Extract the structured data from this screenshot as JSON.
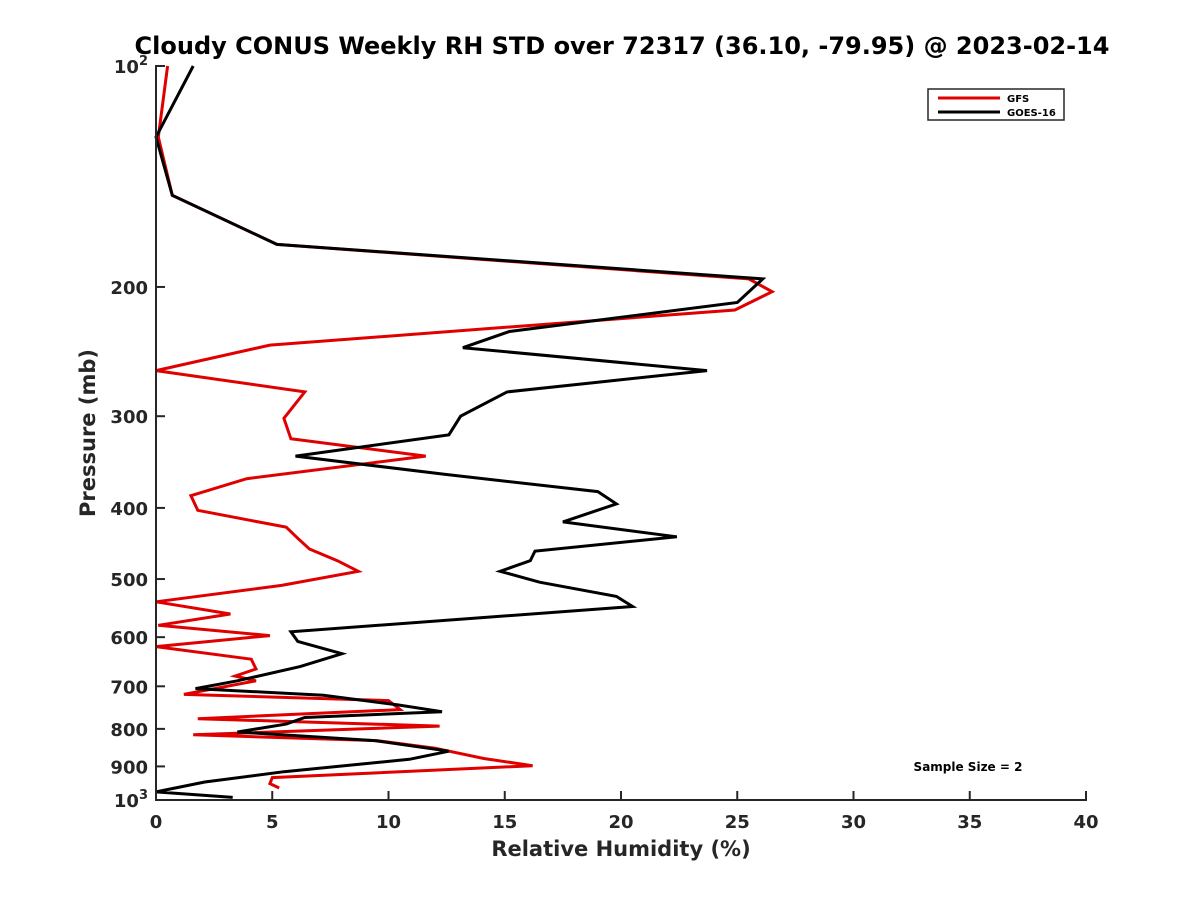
{
  "chart_data": {
    "type": "line",
    "title": "Cloudy CONUS Weekly RH STD over 72317 (36.10, -79.95) @ 2023-02-14",
    "xlabel": "Relative Humidity (%)",
    "ylabel": "Pressure (mb)",
    "xlim": [
      0,
      40
    ],
    "ylim": [
      100,
      1000
    ],
    "y_scale": "log",
    "y_reversed": true,
    "grid": false,
    "legend_position": "top-right",
    "x_ticks": [
      0,
      5,
      10,
      15,
      20,
      25,
      30,
      35,
      40
    ],
    "y_ticks": [
      {
        "value": 100,
        "base": "10",
        "exp": "2"
      },
      {
        "value": 200,
        "label": "200"
      },
      {
        "value": 300,
        "label": "300"
      },
      {
        "value": 400,
        "label": "400"
      },
      {
        "value": 500,
        "label": "500"
      },
      {
        "value": 600,
        "label": "600"
      },
      {
        "value": 700,
        "label": "700"
      },
      {
        "value": 800,
        "label": "800"
      },
      {
        "value": 900,
        "label": "900"
      },
      {
        "value": 1000,
        "base": "10",
        "exp": "3"
      }
    ],
    "annotation": "Sample Size = 2",
    "series": [
      {
        "name": "GFS",
        "color": "#e00000",
        "points": [
          [
            0.5,
            100
          ],
          [
            0.1,
            125
          ],
          [
            0.7,
            150
          ],
          [
            5.2,
            175
          ],
          [
            25.5,
            195
          ],
          [
            26.5,
            203
          ],
          [
            24.9,
            215
          ],
          [
            4.9,
            240
          ],
          [
            0.0,
            260
          ],
          [
            6.4,
            278
          ],
          [
            5.5,
            302
          ],
          [
            5.8,
            322
          ],
          [
            11.6,
            340
          ],
          [
            3.9,
            365
          ],
          [
            1.5,
            385
          ],
          [
            1.8,
            403
          ],
          [
            5.6,
            425
          ],
          [
            6.1,
            440
          ],
          [
            6.6,
            455
          ],
          [
            7.8,
            472
          ],
          [
            8.7,
            488
          ],
          [
            5.4,
            510
          ],
          [
            0.0,
            537
          ],
          [
            3.2,
            558
          ],
          [
            0.1,
            578
          ],
          [
            4.9,
            597
          ],
          [
            0.0,
            618
          ],
          [
            4.1,
            643
          ],
          [
            4.3,
            663
          ],
          [
            3.4,
            678
          ],
          [
            4.3,
            688
          ],
          [
            1.2,
            718
          ],
          [
            10.0,
            732
          ],
          [
            10.5,
            753
          ],
          [
            1.8,
            775
          ],
          [
            12.2,
            793
          ],
          [
            1.6,
            815
          ],
          [
            9.5,
            830
          ],
          [
            12.0,
            850
          ],
          [
            14.1,
            878
          ],
          [
            16.2,
            898
          ],
          [
            5.0,
            932
          ],
          [
            4.9,
            950
          ],
          [
            5.3,
            963
          ]
        ]
      },
      {
        "name": "GOES-16",
        "color": "#000000",
        "points": [
          [
            1.6,
            100
          ],
          [
            0.0,
            125
          ],
          [
            0.7,
            150
          ],
          [
            5.2,
            175
          ],
          [
            26.1,
            195
          ],
          [
            25.0,
            210
          ],
          [
            15.2,
            230
          ],
          [
            13.2,
            242
          ],
          [
            23.7,
            260
          ],
          [
            15.1,
            278
          ],
          [
            13.1,
            300
          ],
          [
            12.6,
            318
          ],
          [
            6.0,
            340
          ],
          [
            12.4,
            360
          ],
          [
            19.0,
            380
          ],
          [
            19.8,
            395
          ],
          [
            17.5,
            418
          ],
          [
            22.4,
            438
          ],
          [
            16.3,
            458
          ],
          [
            16.1,
            472
          ],
          [
            14.8,
            488
          ],
          [
            16.5,
            505
          ],
          [
            19.8,
            528
          ],
          [
            20.5,
            545
          ],
          [
            5.8,
            590
          ],
          [
            6.1,
            608
          ],
          [
            8.0,
            632
          ],
          [
            6.2,
            658
          ],
          [
            3.5,
            688
          ],
          [
            1.7,
            705
          ],
          [
            7.2,
            720
          ],
          [
            10.4,
            742
          ],
          [
            12.3,
            758
          ],
          [
            6.4,
            772
          ],
          [
            5.6,
            788
          ],
          [
            3.5,
            808
          ],
          [
            9.4,
            830
          ],
          [
            12.6,
            858
          ],
          [
            10.9,
            880
          ],
          [
            5.5,
            915
          ],
          [
            2.1,
            945
          ],
          [
            0.0,
            975
          ],
          [
            3.3,
            992
          ]
        ]
      }
    ]
  }
}
